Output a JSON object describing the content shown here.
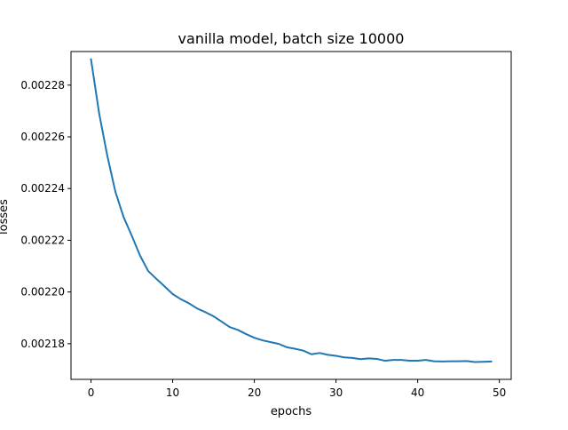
{
  "chart_data": {
    "type": "line",
    "title": "vanilla model, batch size 10000",
    "xlabel": "epochs",
    "ylabel": "losses",
    "xlim": [
      -2.45,
      51.45
    ],
    "ylim": [
      0.0021662,
      0.002293
    ],
    "xticks": [
      0,
      10,
      20,
      30,
      40,
      50
    ],
    "xtick_labels": [
      "0",
      "10",
      "20",
      "30",
      "40",
      "50"
    ],
    "yticks": [
      0.00218,
      0.0022,
      0.00222,
      0.00224,
      0.00226,
      0.00228
    ],
    "ytick_labels": [
      "0.00218",
      "0.00220",
      "0.00222",
      "0.00224",
      "0.00226",
      "0.00228"
    ],
    "grid": false,
    "legend": "none",
    "series": [
      {
        "color": "#1f77b4",
        "x": [
          0,
          1,
          2,
          3,
          4,
          5,
          6,
          7,
          8,
          9,
          10,
          11,
          12,
          13,
          14,
          15,
          16,
          17,
          18,
          19,
          20,
          21,
          22,
          23,
          24,
          25,
          26,
          27,
          28,
          29,
          30,
          31,
          32,
          33,
          34,
          35,
          36,
          37,
          38,
          39,
          40,
          41,
          42,
          43,
          44,
          45,
          46,
          47,
          48,
          49
        ],
        "y": [
          0.00229,
          0.002269,
          0.0022526,
          0.0022386,
          0.0022289,
          0.0022217,
          0.0022141,
          0.0022081,
          0.0022051,
          0.0022022,
          0.0021992,
          0.0021972,
          0.0021956,
          0.0021936,
          0.0021922,
          0.0021906,
          0.0021885,
          0.0021864,
          0.0021853,
          0.0021837,
          0.0021823,
          0.0021813,
          0.0021806,
          0.0021799,
          0.0021786,
          0.002178,
          0.0021773,
          0.0021759,
          0.0021764,
          0.0021757,
          0.0021753,
          0.0021747,
          0.0021745,
          0.002174,
          0.0021743,
          0.0021741,
          0.0021734,
          0.0021737,
          0.0021737,
          0.0021734,
          0.0021734,
          0.0021737,
          0.0021732,
          0.0021731,
          0.0021732,
          0.0021732,
          0.0021733,
          0.0021729,
          0.002173,
          0.0021731
        ]
      }
    ]
  }
}
